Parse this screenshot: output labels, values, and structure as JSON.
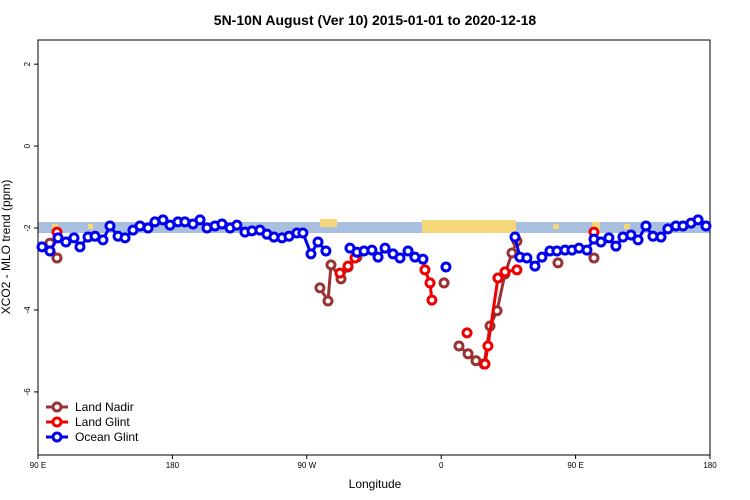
{
  "chart_data": {
    "type": "line",
    "title": "5N-10N August (Ver 10)   2015-01-01 to 2020-12-18",
    "x_label": "Longitude",
    "y_label": "XCO2 - MLO trend (ppm)",
    "xlim": [
      90,
      540
    ],
    "ylim": [
      -7.54,
      2.59
    ],
    "xticks": [
      {
        "value": 90,
        "label": "90 E"
      },
      180,
      {
        "value": 270,
        "label": "90 W"
      },
      {
        "value": 360,
        "label": "0"
      },
      {
        "value": 450,
        "label": "90 E"
      },
      {
        "value": 540,
        "label": "180"
      }
    ],
    "yticks": [
      2,
      0,
      -2,
      -4,
      -6
    ],
    "legend": "bottomleft",
    "series": [
      {
        "name": "Land Nadir",
        "color": "#993333",
        "x": [
          98.0,
          102.7,
          240,
          278.8,
          284.2,
          286.2,
          292.9,
          297.6,
          303.6,
          330,
          361.9,
          367,
          371.9,
          378.0,
          383.3,
          388.7,
          392.7,
          397.4,
          402.7,
          407.4,
          410.7,
          425,
          438.2,
          450,
          462.3
        ],
        "values": [
          -2.37,
          -2.73,
          null,
          -3.46,
          -3.78,
          -2.9,
          -3.24,
          -2.95,
          -2.71,
          null,
          -3.34,
          null,
          -4.88,
          -5.07,
          -5.24,
          -5.32,
          -4.39,
          -4.02,
          -3.12,
          -2.61,
          -2.32,
          null,
          -2.85,
          null,
          -2.73
        ]
      },
      {
        "name": "Land Glint",
        "color": "#ee0000",
        "x": [
          102.7,
          200,
          292.2,
          297.6,
          302.3,
          330,
          349.1,
          352.5,
          353.8,
          365,
          377.3,
          383,
          389.3,
          391.3,
          398.0,
          402.7,
          410.7,
          440,
          462.3
        ],
        "values": [
          -2.1,
          null,
          -3.1,
          -2.93,
          -2.73,
          null,
          -3.02,
          -3.34,
          -3.76,
          null,
          -4.56,
          null,
          -5.32,
          -4.88,
          -3.22,
          -3.07,
          -3.02,
          null,
          -2.1
        ]
      },
      {
        "name": "Ocean Glint",
        "color": "#0000ee",
        "x": [
          92.7,
          98.0,
          103.4,
          108.7,
          114.1,
          118.1,
          123.5,
          128.2,
          133.5,
          138.2,
          143.6,
          148.3,
          153.6,
          158.3,
          163.7,
          168.3,
          173.7,
          178.4,
          183.7,
          188.4,
          193.8,
          198.5,
          203.2,
          208.5,
          213.2,
          218.6,
          223.2,
          228.6,
          233.3,
          238.6,
          243.3,
          248.0,
          253.4,
          258.1,
          263.4,
          267.4,
          272.8,
          277.5,
          282.8,
          290,
          298.9,
          303.6,
          308.3,
          313.6,
          317.7,
          322.4,
          327.7,
          332.4,
          337.8,
          342.4,
          347.8,
          355,
          363.2,
          385,
          409.4,
          412.7,
          417.4,
          422.8,
          427.5,
          432.8,
          437.5,
          442.9,
          447.6,
          452.3,
          457.6,
          462.3,
          467.0,
          472.3,
          477.0,
          481.7,
          487.1,
          491.8,
          497.1,
          501.8,
          507.2,
          511.8,
          517.2,
          521.9,
          527.3,
          532.0,
          537.3
        ],
        "values": [
          -2.46,
          -2.56,
          -2.24,
          -2.34,
          -2.24,
          -2.46,
          -2.22,
          -2.2,
          -2.29,
          -1.95,
          -2.2,
          -2.24,
          -2.05,
          -1.95,
          -2.0,
          -1.85,
          -1.8,
          -1.93,
          -1.85,
          -1.85,
          -1.9,
          -1.8,
          -2.0,
          -1.95,
          -1.9,
          -2.0,
          -1.93,
          -2.1,
          -2.07,
          -2.05,
          -2.15,
          -2.22,
          -2.24,
          -2.2,
          -2.12,
          -2.12,
          -2.63,
          -2.34,
          -2.56,
          null,
          -2.49,
          -2.59,
          -2.56,
          -2.54,
          -2.71,
          -2.49,
          -2.63,
          -2.73,
          -2.56,
          -2.71,
          -2.76,
          null,
          -2.95,
          null,
          -2.22,
          -2.71,
          -2.73,
          -2.93,
          -2.71,
          -2.56,
          -2.56,
          -2.54,
          -2.54,
          -2.49,
          -2.54,
          -2.27,
          -2.34,
          -2.24,
          -2.44,
          -2.22,
          -2.17,
          -2.29,
          -1.95,
          -2.2,
          -2.22,
          -2.02,
          -1.95,
          -1.95,
          -1.88,
          -1.8,
          -1.95
        ]
      }
    ]
  }
}
